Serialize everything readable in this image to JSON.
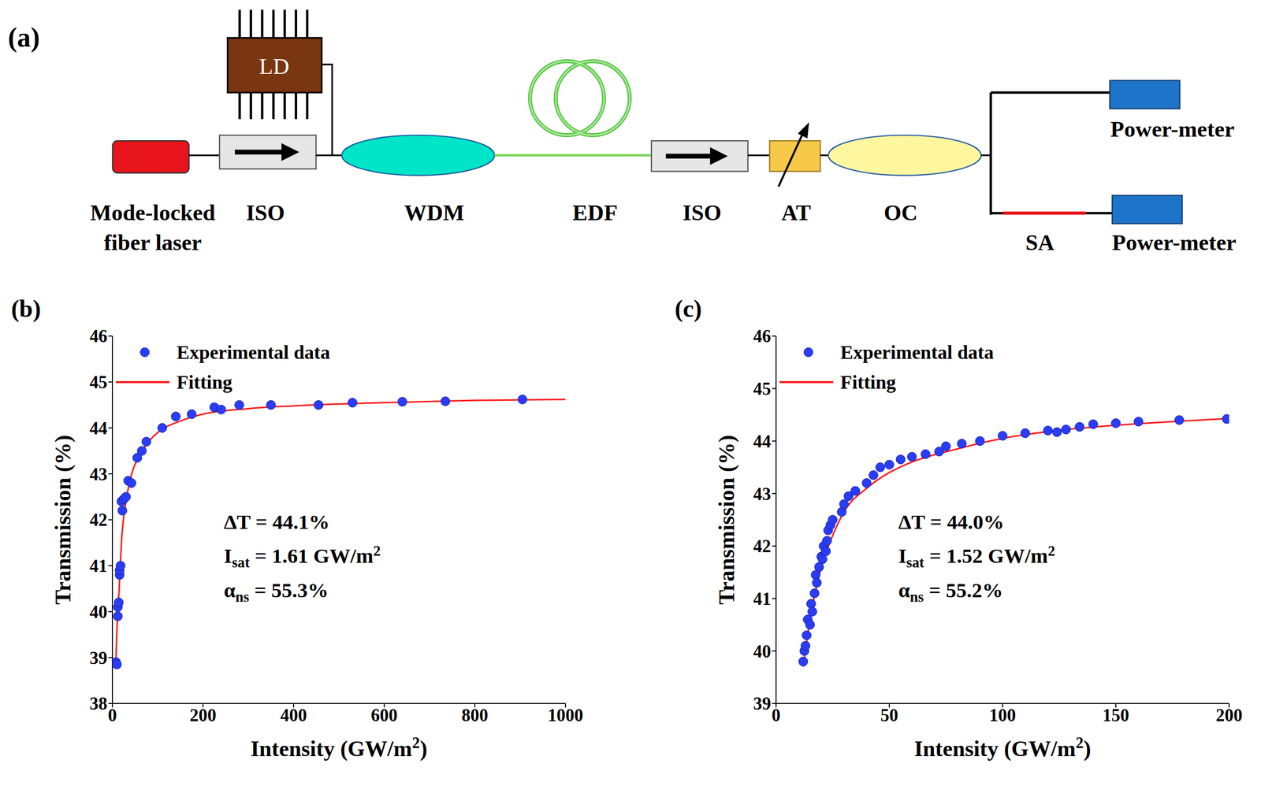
{
  "diagram": {
    "panel_label": "(a)",
    "nodes": {
      "laser": "Mode-locked fiber laser",
      "iso1": "ISO",
      "ld": "LD",
      "wdm": "WDM",
      "edf": "EDF",
      "iso2": "ISO",
      "at": "AT",
      "oc": "OC",
      "power_meter_1": "Power-meter",
      "sa": "SA",
      "power_meter_2": "Power-meter"
    }
  },
  "chart_data": [
    {
      "type": "scatter",
      "panel_label": "(b)",
      "x_label": [
        {
          "text": "Intensity (GW/m"
        },
        {
          "text": "2",
          "style": "sup"
        },
        {
          "text": ")"
        }
      ],
      "y_label": [
        {
          "text": "Transmission (%)"
        }
      ],
      "xlim": [
        0,
        1000
      ],
      "xticks": [
        0,
        200,
        400,
        600,
        800,
        1000
      ],
      "ylim": [
        38,
        46
      ],
      "yticks": [
        38,
        39,
        40,
        41,
        42,
        43,
        44,
        45,
        46
      ],
      "grid": false,
      "legend": "top-left",
      "annotations": [
        [
          {
            "text": "ΔT = 44.1%"
          }
        ],
        [
          {
            "text": "I"
          },
          {
            "text": "sat",
            "style": "sub"
          },
          {
            "text": " = 1.61 GW/m"
          },
          {
            "text": "2",
            "style": "sup"
          }
        ],
        [
          {
            "text": "α"
          },
          {
            "text": "ns",
            "style": "sub"
          },
          {
            "text": " = 55.3%"
          }
        ]
      ],
      "series": [
        {
          "name": "Experimental data",
          "type": "scatter",
          "marker": "circle",
          "color": "#2a3cf5",
          "x": [
            8,
            10,
            12,
            12,
            14,
            16,
            16,
            18,
            20,
            22,
            25,
            30,
            35,
            42,
            55,
            65,
            75,
            110,
            140,
            175,
            225,
            240,
            280,
            350,
            455,
            530,
            640,
            735,
            905
          ],
          "values": [
            38.9,
            38.85,
            39.9,
            40.1,
            40.2,
            40.8,
            40.9,
            41.0,
            42.4,
            42.2,
            42.45,
            42.5,
            42.85,
            42.8,
            43.35,
            43.5,
            43.7,
            44.0,
            44.25,
            44.3,
            44.45,
            44.4,
            44.5,
            44.5,
            44.5,
            44.55,
            44.57,
            44.58,
            44.62
          ]
        },
        {
          "name": "Fitting",
          "type": "line",
          "line_style": "solid",
          "color": "#ff1a1a",
          "x": [
            8,
            10,
            15,
            20,
            30,
            40,
            60,
            80,
            100,
            150,
            200,
            300,
            400,
            600,
            800,
            1000
          ],
          "values": [
            39.0,
            39.6,
            40.5,
            41.5,
            42.4,
            42.9,
            43.4,
            43.7,
            43.9,
            44.15,
            44.3,
            44.42,
            44.48,
            44.55,
            44.6,
            44.62
          ]
        }
      ]
    },
    {
      "type": "scatter",
      "panel_label": "(c)",
      "x_label": [
        {
          "text": "Intensity (GW/m"
        },
        {
          "text": "2",
          "style": "sup"
        },
        {
          "text": ")"
        }
      ],
      "y_label": [
        {
          "text": "Transmission (%)"
        }
      ],
      "xlim": [
        0,
        200
      ],
      "xticks": [
        0,
        50,
        100,
        150,
        200
      ],
      "ylim": [
        39,
        46
      ],
      "yticks": [
        39,
        40,
        41,
        42,
        43,
        44,
        45,
        46
      ],
      "grid": false,
      "legend": "top-left",
      "annotations": [
        [
          {
            "text": "ΔT = 44.0%"
          }
        ],
        [
          {
            "text": "I"
          },
          {
            "text": "sat",
            "style": "sub"
          },
          {
            "text": " = 1.52 GW/m"
          },
          {
            "text": "2",
            "style": "sup"
          }
        ],
        [
          {
            "text": "α"
          },
          {
            "text": "ns",
            "style": "sub"
          },
          {
            "text": " = 55.2%"
          }
        ]
      ],
      "series": [
        {
          "name": "Experimental data",
          "type": "scatter",
          "marker": "circle",
          "color": "#2a3cf5",
          "x": [
            12,
            12.5,
            13,
            13.5,
            14,
            15,
            15.5,
            16,
            17,
            17.5,
            18,
            19,
            20,
            20.5,
            21,
            22,
            22.5,
            23,
            24,
            25,
            29,
            30,
            32,
            35,
            40,
            43,
            46,
            50,
            55,
            60,
            66,
            72,
            75,
            82,
            90,
            100,
            110,
            120,
            124,
            128,
            134,
            140,
            150,
            160,
            178,
            199
          ],
          "values": [
            39.8,
            40.0,
            40.1,
            40.3,
            40.6,
            40.5,
            40.9,
            40.75,
            41.1,
            41.45,
            41.3,
            41.6,
            41.8,
            41.75,
            42.0,
            41.9,
            42.1,
            42.3,
            42.4,
            42.5,
            42.65,
            42.8,
            42.95,
            43.05,
            43.2,
            43.35,
            43.5,
            43.55,
            43.65,
            43.7,
            43.75,
            43.8,
            43.9,
            43.95,
            44.0,
            44.1,
            44.15,
            44.2,
            44.17,
            44.22,
            44.27,
            44.32,
            44.34,
            44.37,
            44.4,
            44.42
          ]
        },
        {
          "name": "Fitting",
          "type": "line",
          "line_style": "solid",
          "color": "#ff1a1a",
          "x": [
            12,
            15,
            20,
            25,
            30,
            40,
            50,
            60,
            80,
            100,
            120,
            150,
            175,
            200
          ],
          "values": [
            39.7,
            40.6,
            41.6,
            42.2,
            42.65,
            43.1,
            43.4,
            43.6,
            43.85,
            44.05,
            44.18,
            44.3,
            44.37,
            44.43
          ]
        }
      ]
    }
  ]
}
